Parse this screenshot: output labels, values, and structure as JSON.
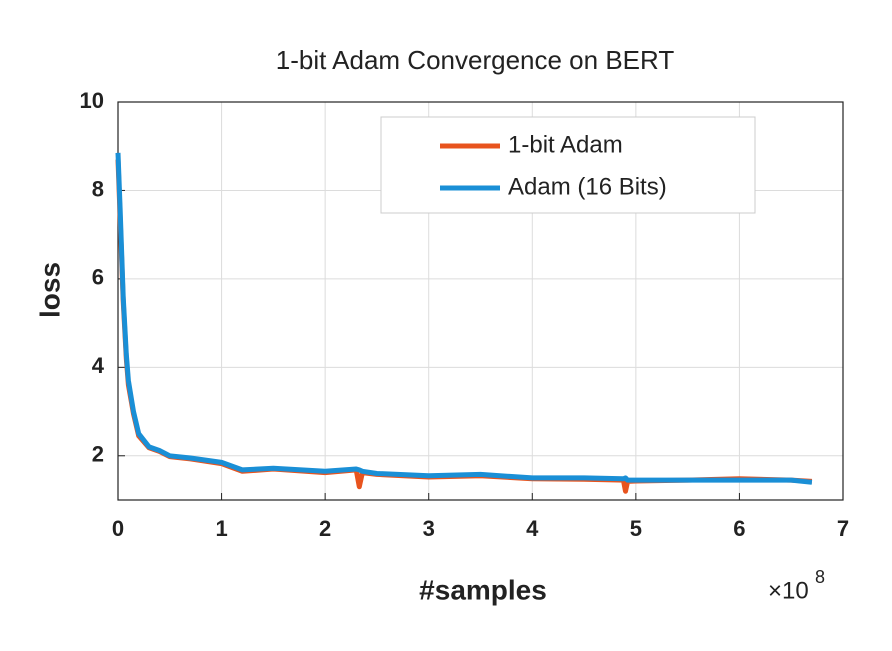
{
  "chart_data": {
    "type": "line",
    "title": "1-bit Adam Convergence on BERT",
    "x_label": "#samples",
    "y_label": "loss",
    "x_multiplier": {
      "base": "×10",
      "exponent": "8"
    },
    "x": [
      0,
      0.02,
      0.05,
      0.08,
      0.1,
      0.15,
      0.2,
      0.3,
      0.4,
      0.5,
      0.7,
      1.0,
      1.2,
      1.5,
      2.0,
      2.3,
      2.33,
      2.36,
      2.5,
      3.0,
      3.5,
      4.0,
      4.5,
      4.88,
      4.9,
      4.92,
      5.0,
      5.5,
      6.0,
      6.5,
      6.7
    ],
    "series": [
      {
        "name": "1-bit Adam",
        "color": "#e8541e",
        "values": [
          8.7,
          7.4,
          5.5,
          4.2,
          3.6,
          2.95,
          2.45,
          2.18,
          2.1,
          1.98,
          1.93,
          1.82,
          1.65,
          1.7,
          1.62,
          1.68,
          1.3,
          1.62,
          1.58,
          1.52,
          1.55,
          1.48,
          1.47,
          1.45,
          1.2,
          1.42,
          1.43,
          1.45,
          1.48,
          1.45,
          1.42
        ]
      },
      {
        "name": "Adam (16 Bits)",
        "color": "#1a8fd6",
        "values": [
          8.85,
          7.6,
          5.6,
          4.3,
          3.7,
          3.0,
          2.5,
          2.2,
          2.12,
          2.0,
          1.95,
          1.85,
          1.68,
          1.72,
          1.65,
          1.7,
          1.68,
          1.65,
          1.6,
          1.55,
          1.58,
          1.5,
          1.5,
          1.48,
          1.5,
          1.45,
          1.45,
          1.45,
          1.45,
          1.45,
          1.4
        ]
      }
    ],
    "xlim": [
      0,
      7
    ],
    "xticks": [
      0,
      1,
      2,
      3,
      4,
      5,
      6,
      7
    ],
    "ylim": [
      1,
      10
    ],
    "yticks": [
      2,
      4,
      6,
      8,
      10
    ],
    "grid": true,
    "legend": "upper right"
  }
}
